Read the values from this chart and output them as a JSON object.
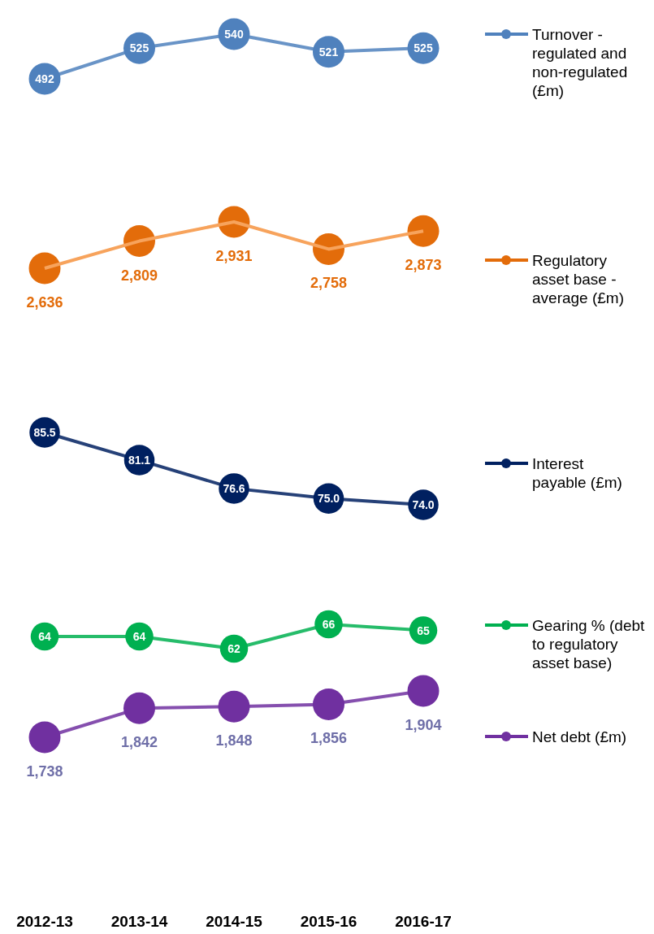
{
  "chart_data": [
    {
      "type": "line",
      "categories": [
        "2012-13",
        "2013-14",
        "2014-15",
        "2015-16",
        "2016-17"
      ],
      "series": [
        {
          "name": "Turnover - regulated and non-regulated (£m)",
          "color": "#4f81bd",
          "values": [
            492,
            525,
            540,
            521,
            525
          ]
        }
      ],
      "data_labels": true,
      "marker": "circle",
      "legend": "right",
      "tick_labels": false
    },
    {
      "type": "line",
      "categories": [
        "2012-13",
        "2013-14",
        "2014-15",
        "2015-16",
        "2016-17"
      ],
      "series": [
        {
          "name": "Regulatory asset base - average (£m)",
          "color": "#e36c0a",
          "values": [
            2636,
            2809,
            2931,
            2758,
            2873
          ],
          "value_labels": [
            "2,636",
            "2,809",
            "2,931",
            "2,758",
            "2,873"
          ]
        }
      ],
      "data_labels": true,
      "marker": "circle",
      "legend": "right",
      "tick_labels": false
    },
    {
      "type": "line",
      "categories": [
        "2012-13",
        "2013-14",
        "2014-15",
        "2015-16",
        "2016-17"
      ],
      "series": [
        {
          "name": "Interest payable (£m)",
          "color": "#002060",
          "values": [
            85.5,
            81.1,
            76.6,
            75.0,
            74.0
          ],
          "value_labels": [
            "85.5",
            "81.1",
            "76.6",
            "75.0",
            "74.0"
          ]
        }
      ],
      "data_labels": true,
      "marker": "circle",
      "legend": "right",
      "tick_labels": false
    },
    {
      "type": "line",
      "categories": [
        "2012-13",
        "2013-14",
        "2014-15",
        "2015-16",
        "2016-17"
      ],
      "series": [
        {
          "name": "Gearing % (debt to regulatory asset base)",
          "color": "#00b050",
          "values": [
            64,
            64,
            62,
            66,
            65
          ]
        }
      ],
      "data_labels": true,
      "marker": "circle",
      "legend": "right",
      "tick_labels": false
    },
    {
      "type": "line",
      "categories": [
        "2012-13",
        "2013-14",
        "2014-15",
        "2015-16",
        "2016-17"
      ],
      "series": [
        {
          "name": "Net debt (£m)",
          "color": "#7030a0",
          "values": [
            1738,
            1842,
            1848,
            1856,
            1904
          ],
          "value_labels": [
            "1,738",
            "1,842",
            "1,848",
            "1,856",
            "1,904"
          ]
        }
      ],
      "data_labels": true,
      "marker": "circle",
      "legend": "right",
      "tick_labels": "x"
    }
  ]
}
